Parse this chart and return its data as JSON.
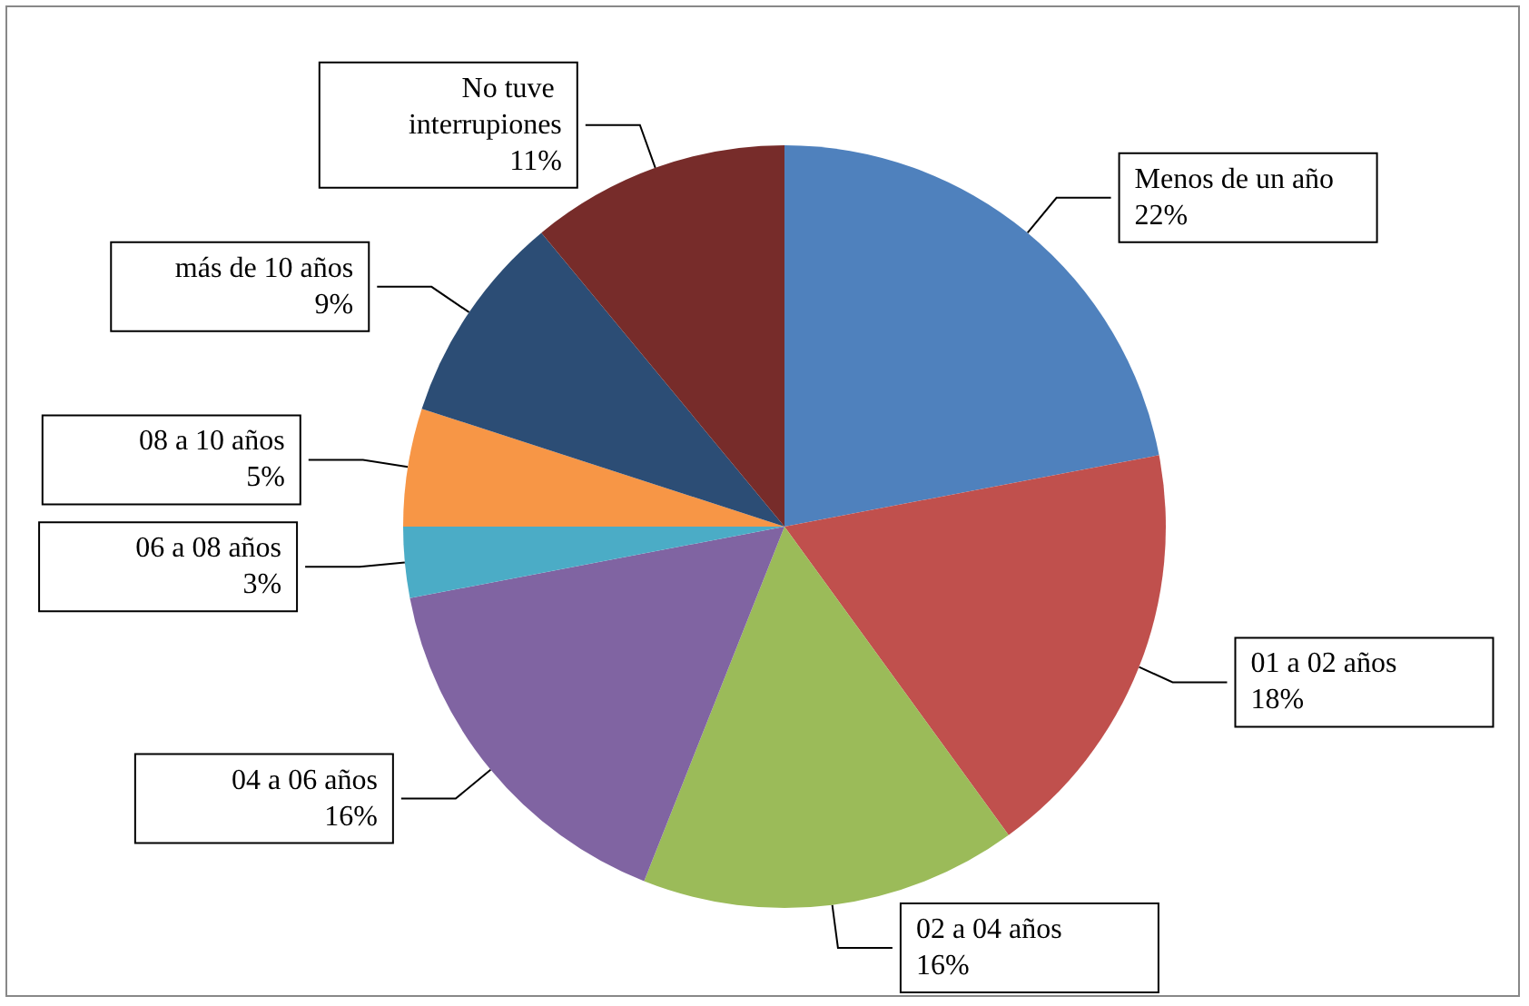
{
  "chart_data": {
    "type": "pie",
    "categories": [
      "Menos de un año",
      "01 a 02 años",
      "02 a 04 años",
      "04 a 06 años",
      "06 a 08 años",
      "08 a 10 años",
      "más de 10 años",
      "No tuve interrupiones"
    ],
    "values": [
      22,
      18,
      16,
      16,
      3,
      5,
      9,
      11
    ],
    "value_labels": [
      "22%",
      "18%",
      "16%",
      "16%",
      "3%",
      "5%",
      "9%",
      "11%"
    ],
    "colors": [
      "#4f81bd",
      "#c0504d",
      "#9bbb59",
      "#8064a2",
      "#4bacc6",
      "#f79646",
      "#2c4d75",
      "#772c2a"
    ],
    "legend": false
  }
}
